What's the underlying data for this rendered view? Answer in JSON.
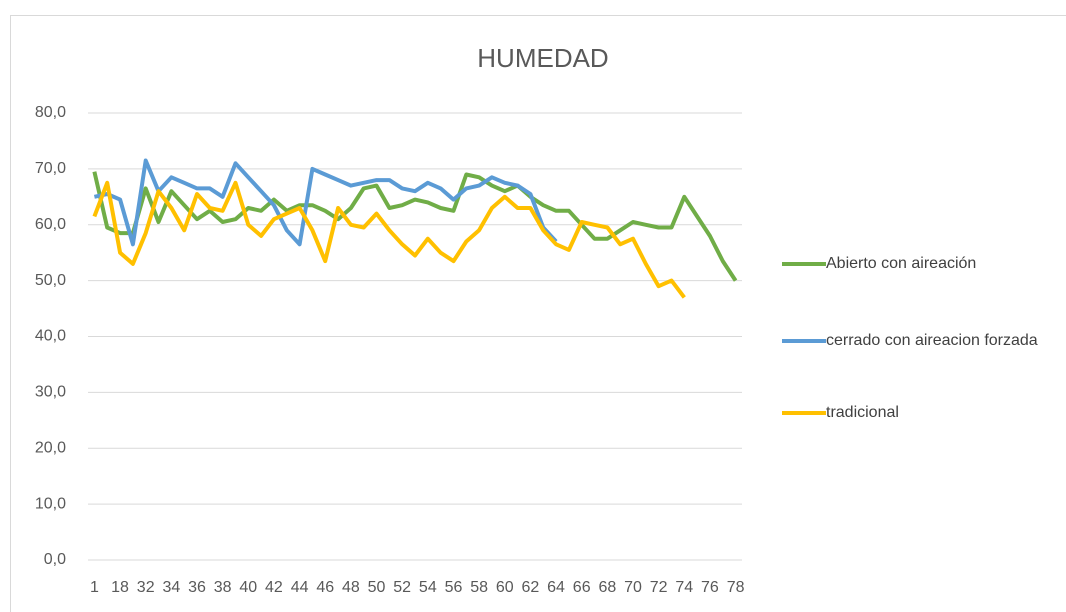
{
  "chart_data": {
    "type": "line",
    "title": "HUMEDAD",
    "categories": [
      "1",
      null,
      "18",
      null,
      "32",
      null,
      "34",
      null,
      "36",
      null,
      "38",
      null,
      "40",
      null,
      "42",
      null,
      "44",
      null,
      "46",
      null,
      "48",
      null,
      "50",
      null,
      "52",
      null,
      "54",
      null,
      "56",
      null,
      "58",
      null,
      "60",
      null,
      "62",
      null,
      "64",
      null,
      "66",
      null,
      "68",
      null,
      "70",
      null,
      "72",
      null,
      "74",
      null,
      "76",
      null,
      "78"
    ],
    "series": [
      {
        "name": "Abierto con aireación",
        "color": "#70ad47",
        "values": [
          69.5,
          59.5,
          58.5,
          58.5,
          66.5,
          60.5,
          66,
          63.5,
          61,
          62.5,
          60.5,
          61,
          63,
          62.5,
          64.5,
          62.5,
          63.5,
          63.5,
          62.5,
          61,
          63,
          66.5,
          67,
          63,
          63.5,
          64.5,
          64,
          63,
          62.5,
          69,
          68.5,
          67,
          66,
          67,
          65,
          63.5,
          62.5,
          62.5,
          60,
          57.5,
          57.5,
          59,
          60.5,
          60,
          59.5,
          59.5,
          65,
          61.5,
          58,
          53.5,
          50
        ]
      },
      {
        "name": "cerrado con aireacion forzada",
        "color": "#5b9bd5",
        "values": [
          65,
          65.5,
          64.5,
          56.5,
          71.5,
          66,
          68.5,
          67.5,
          66.5,
          66.5,
          65,
          71,
          68.5,
          66,
          63.5,
          59,
          56.5,
          70,
          69,
          68,
          67,
          67.5,
          68,
          68,
          66.5,
          66,
          67.5,
          66.5,
          64.5,
          66.5,
          67,
          68.5,
          67.5,
          67,
          65.5,
          59.5,
          57,
          null,
          null,
          null,
          null,
          null,
          null,
          null,
          null,
          null,
          null,
          null,
          null,
          null,
          null
        ]
      },
      {
        "name": "tradicional",
        "color": "#ffc000",
        "values": [
          61.5,
          67.5,
          55,
          53,
          58.5,
          66,
          63,
          59,
          65.5,
          63,
          62.5,
          67.5,
          60,
          58,
          61,
          62,
          63,
          59,
          53.5,
          63,
          60,
          59.5,
          62,
          59,
          56.5,
          54.5,
          57.5,
          55,
          53.5,
          57,
          59,
          63,
          65,
          63,
          63,
          59,
          56.5,
          55.5,
          60.5,
          60,
          59.5,
          56.5,
          57.5,
          53,
          49,
          50,
          47,
          null,
          null,
          null,
          null
        ]
      }
    ],
    "ylim": [
      0,
      80
    ],
    "yticks": [
      {
        "value": 0,
        "label": "0,0"
      },
      {
        "value": 10,
        "label": "10,0"
      },
      {
        "value": 20,
        "label": "20,0"
      },
      {
        "value": 30,
        "label": "30,0"
      },
      {
        "value": 40,
        "label": "40,0"
      },
      {
        "value": 50,
        "label": "50,0"
      },
      {
        "value": 60,
        "label": "60,0"
      },
      {
        "value": 70,
        "label": "70,0"
      },
      {
        "value": 80,
        "label": "80,0"
      }
    ],
    "grid": true,
    "legend": "right"
  }
}
